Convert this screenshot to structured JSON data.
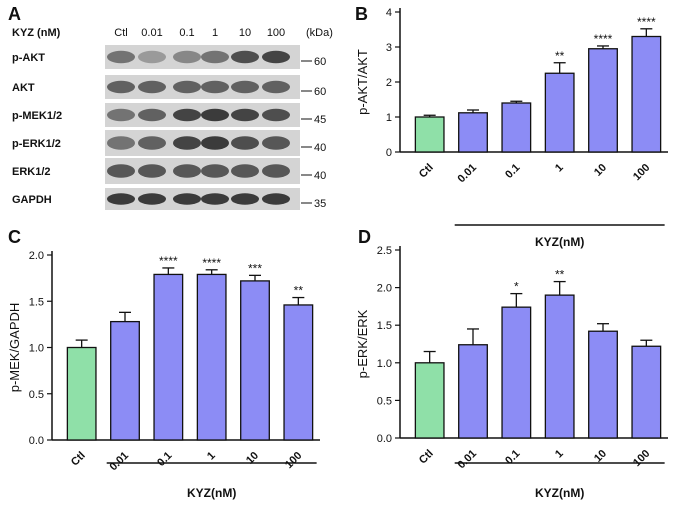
{
  "blot": {
    "panel_letter": "A",
    "header_label": "KYZ (nM)",
    "lanes": [
      "Ctl",
      "0.01",
      "0.1",
      "1",
      "10",
      "100"
    ],
    "kda_label": "(kDa)",
    "rows": [
      {
        "name": "p-AKT",
        "kda": "60",
        "intensity": [
          0.55,
          0.35,
          0.45,
          0.55,
          0.75,
          0.8
        ]
      },
      {
        "name": "AKT",
        "kda": "60",
        "intensity": [
          0.65,
          0.65,
          0.65,
          0.65,
          0.65,
          0.65
        ]
      },
      {
        "name": "p-MEK1/2",
        "kda": "45",
        "intensity": [
          0.55,
          0.65,
          0.8,
          0.85,
          0.8,
          0.75
        ]
      },
      {
        "name": "p-ERK1/2",
        "kda": "40",
        "intensity": [
          0.55,
          0.65,
          0.8,
          0.85,
          0.75,
          0.7
        ]
      },
      {
        "name": "ERK1/2",
        "kda": "40",
        "intensity": [
          0.7,
          0.7,
          0.7,
          0.7,
          0.7,
          0.7
        ]
      },
      {
        "name": "GAPDH",
        "kda": "35",
        "intensity": [
          0.85,
          0.85,
          0.85,
          0.85,
          0.85,
          0.85
        ]
      }
    ]
  },
  "colors": {
    "control_fill": "#8fe0a8",
    "treated_fill": "#8c8cf5",
    "outline": "#111111"
  },
  "chart_data": [
    {
      "panel": "B",
      "type": "bar",
      "categories": [
        "Ctl",
        "0.01",
        "0.1",
        "1",
        "10",
        "100"
      ],
      "values": [
        1.0,
        1.12,
        1.4,
        2.25,
        2.95,
        3.3
      ],
      "errors": [
        0.05,
        0.08,
        0.05,
        0.3,
        0.08,
        0.22
      ],
      "significance": [
        "",
        "",
        "",
        "**",
        "****",
        "****"
      ],
      "ylabel": "p-AKT/AKT",
      "xgroup_label": "KYZ(nM)",
      "ylim": [
        0,
        4
      ],
      "yticks": [
        "0",
        "1",
        "2",
        "3",
        "4"
      ]
    },
    {
      "panel": "C",
      "type": "bar",
      "categories": [
        "Ctl",
        "0.01",
        "0.1",
        "1",
        "10",
        "100"
      ],
      "values": [
        1.0,
        1.28,
        1.79,
        1.79,
        1.72,
        1.46
      ],
      "errors": [
        0.08,
        0.1,
        0.07,
        0.05,
        0.06,
        0.08
      ],
      "significance": [
        "",
        "",
        "****",
        "****",
        "***",
        "**"
      ],
      "ylabel": "p-MEK/GAPDH",
      "xgroup_label": "KYZ(nM)",
      "ylim": [
        0,
        2.0
      ],
      "yticks": [
        "0.0",
        "0.5",
        "1.0",
        "1.5",
        "2.0"
      ]
    },
    {
      "panel": "D",
      "type": "bar",
      "categories": [
        "Ctl",
        "0.01",
        "0.1",
        "1",
        "10",
        "100"
      ],
      "values": [
        1.0,
        1.24,
        1.74,
        1.9,
        1.42,
        1.22
      ],
      "errors": [
        0.15,
        0.21,
        0.18,
        0.18,
        0.1,
        0.08
      ],
      "significance": [
        "",
        "",
        "*",
        "**",
        "",
        ""
      ],
      "ylabel": "p-ERK/ERK",
      "xgroup_label": "KYZ(nM)",
      "ylim": [
        0,
        2.5
      ],
      "yticks": [
        "0.0",
        "0.5",
        "1.0",
        "1.5",
        "2.0",
        "2.5"
      ]
    }
  ]
}
